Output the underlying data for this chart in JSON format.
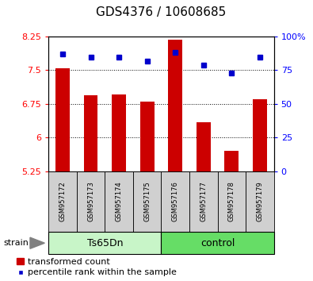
{
  "title": "GDS4376 / 10608685",
  "samples": [
    "GSM957172",
    "GSM957173",
    "GSM957174",
    "GSM957175",
    "GSM957176",
    "GSM957177",
    "GSM957178",
    "GSM957179"
  ],
  "red_values": [
    7.55,
    6.95,
    6.97,
    6.8,
    8.18,
    6.35,
    5.7,
    6.85
  ],
  "blue_values": [
    87,
    85,
    85,
    82,
    88,
    79,
    73,
    85
  ],
  "ylim_left": [
    5.25,
    8.25
  ],
  "ylim_right": [
    0,
    100
  ],
  "yticks_left": [
    5.25,
    6.0,
    6.75,
    7.5,
    8.25
  ],
  "yticks_right": [
    0,
    25,
    50,
    75,
    100
  ],
  "ytick_labels_left": [
    "5.25",
    "6",
    "6.75",
    "7.5",
    "8.25"
  ],
  "ytick_labels_right": [
    "0",
    "25",
    "50",
    "75",
    "100%"
  ],
  "groups": [
    {
      "label": "Ts65Dn",
      "indices": [
        0,
        1,
        2,
        3
      ],
      "color": "#c8f5c8"
    },
    {
      "label": "control",
      "indices": [
        4,
        5,
        6,
        7
      ],
      "color": "#66dd66"
    }
  ],
  "group_row_label": "strain",
  "bar_color": "#cc0000",
  "dot_color": "#0000cc",
  "bar_width": 0.5,
  "background_color": "#ffffff",
  "grid_color": "#000000",
  "title_fontsize": 11,
  "tick_fontsize": 8,
  "sample_fontsize": 6,
  "legend_fontsize": 8,
  "group_label_fontsize": 9
}
